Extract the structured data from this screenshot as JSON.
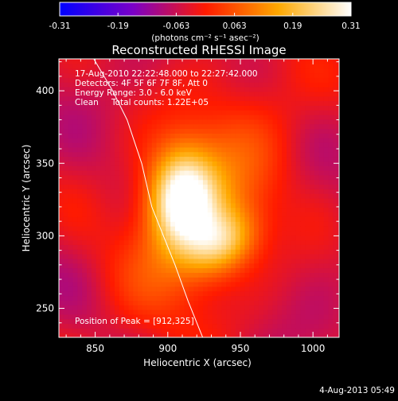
{
  "chart_data": {
    "type": "heatmap",
    "title": "Reconstructed RHESSI Image",
    "xlabel": "Heliocentric X (arcsec)",
    "ylabel": "Heliocentric Y (arcsec)",
    "xlim": [
      825,
      1018
    ],
    "ylim": [
      230,
      422
    ],
    "xticks": [
      850,
      900,
      950,
      1000
    ],
    "yticks": [
      250,
      300,
      350,
      400
    ],
    "colorbar": {
      "min": -0.31,
      "max": 0.31,
      "ticks": [
        "-0.31",
        "-0.19",
        "-0.063",
        "0.063",
        "0.19",
        "0.31"
      ],
      "label": "(photons cm⁻² s⁻¹ asec⁻²)",
      "colormap": "blue-purple-red-yellow-white",
      "colors": [
        "#0000ff",
        "#8000c0",
        "#ff2000",
        "#ffc000",
        "#ffffff"
      ]
    },
    "annotations": {
      "time_range": "17-Aug-2010 22:22:48.000 to 22:27:42.000",
      "detectors": "Detectors: 4F 5F 6F 7F 8F, Att 0",
      "energy": "Energy Range: 3.0 - 6.0 keV",
      "method": "Clean",
      "counts": "Total counts: 1.22E+05",
      "peak": "Position of Peak = [912,325]"
    },
    "sources": [
      {
        "x": 910,
        "y": 326,
        "peak": 0.31
      },
      {
        "x": 938,
        "y": 296,
        "peak": 0.19
      }
    ],
    "limb_curve": [
      [
        849,
        422
      ],
      [
        862,
        400
      ],
      [
        872,
        380
      ],
      [
        882,
        350
      ],
      [
        889,
        320
      ],
      [
        897,
        300
      ],
      [
        905,
        280
      ],
      [
        914,
        255
      ],
      [
        924,
        230
      ]
    ]
  },
  "footer": {
    "date": "4-Aug-2013 05:49"
  }
}
